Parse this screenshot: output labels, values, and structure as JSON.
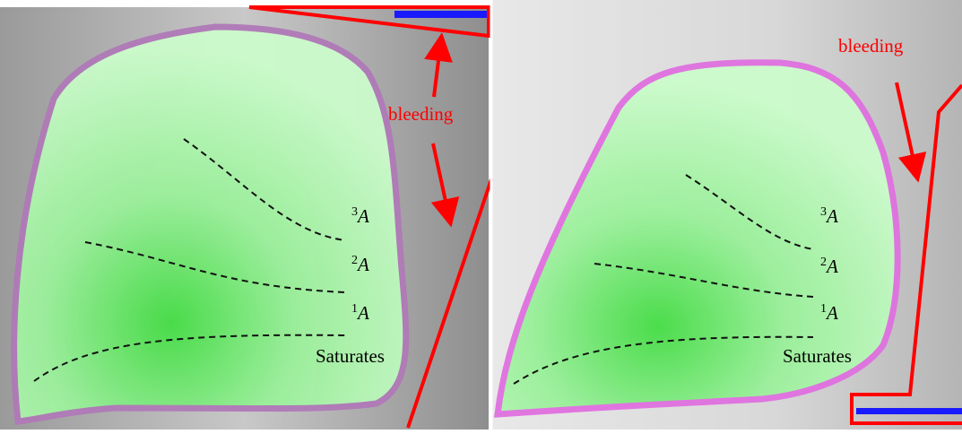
{
  "panels": [
    {
      "bleeding": "bleeding",
      "components": [
        {
          "superscript": "3",
          "letter": "A"
        },
        {
          "superscript": "2",
          "letter": "A"
        },
        {
          "superscript": "1",
          "letter": "A"
        }
      ],
      "saturates": "Saturates"
    },
    {
      "bleeding": "bleeding",
      "components": [
        {
          "superscript": "3",
          "letter": "A"
        },
        {
          "superscript": "2",
          "letter": "A"
        },
        {
          "superscript": "1",
          "letter": "A"
        }
      ],
      "saturates": "Saturates"
    }
  ]
}
